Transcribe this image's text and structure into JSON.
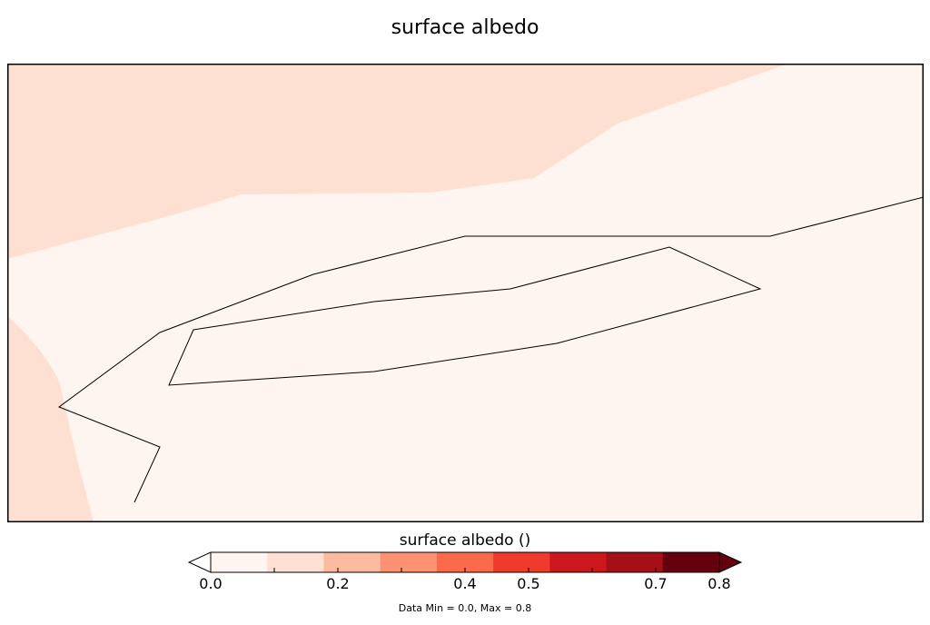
{
  "title": "surface albedo",
  "colorbar": {
    "title": "surface albedo ()",
    "colors": [
      "#fff5f0",
      "#fde0d2",
      "#fcbba1",
      "#fc9272",
      "#fb6a4a",
      "#ef3b2c",
      "#cb181d",
      "#a50f15",
      "#67000d"
    ],
    "under_color": "#ffffff",
    "over_color": "#67000d",
    "min": 0.0,
    "max": 0.8,
    "tick_labels": [
      {
        "value": 0.0,
        "label": "0.0"
      },
      {
        "value": 0.2,
        "label": "0.2"
      },
      {
        "value": 0.4,
        "label": "0.4"
      },
      {
        "value": 0.5,
        "label": "0.5"
      },
      {
        "value": 0.7,
        "label": "0.7"
      },
      {
        "value": 0.8,
        "label": "0.8"
      }
    ],
    "minor_ticks": [
      0.1,
      0.2,
      0.3,
      0.4,
      0.5,
      0.6,
      0.7
    ]
  },
  "data_minmax": "Data Min = 0.0, Max = 0.8",
  "map": {
    "background_color": "#fff5f0",
    "region_color": "#fde0d2",
    "outline_color": "#000000"
  }
}
